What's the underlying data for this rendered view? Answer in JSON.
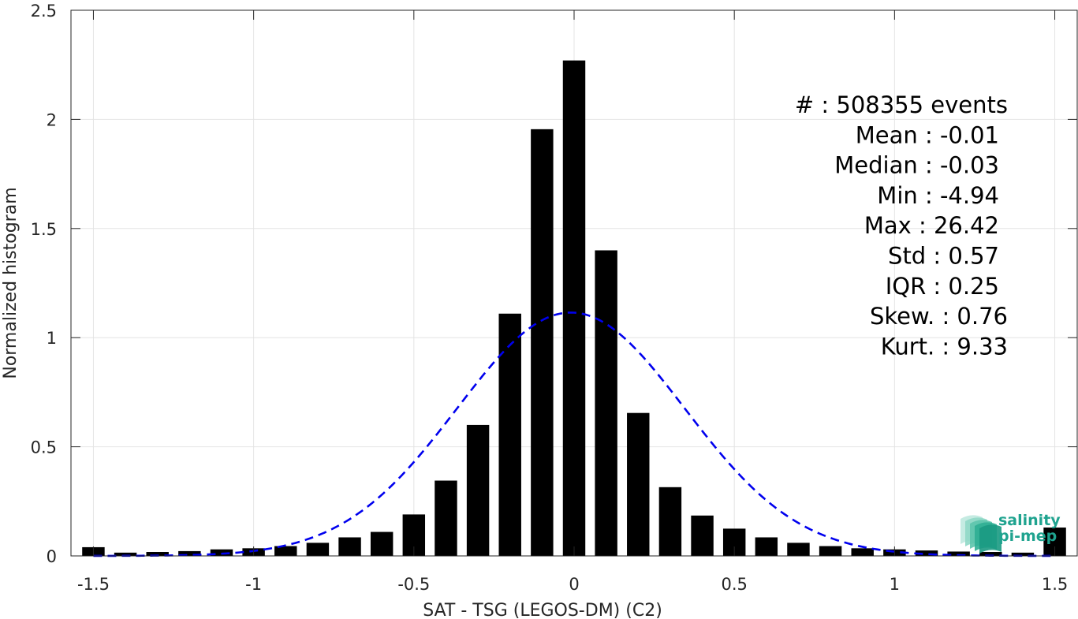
{
  "chart_data": {
    "type": "bar",
    "xlabel": "SAT - TSG (LEGOS-DM) (C2)",
    "ylabel": "Normalized histogram",
    "xlim": [
      -1.57,
      1.57
    ],
    "ylim": [
      0,
      2.5
    ],
    "xticks": [
      -1.5,
      -1,
      -0.5,
      0,
      0.5,
      1,
      1.5
    ],
    "xtick_labels": [
      "-1.5",
      "-1",
      "-0.5",
      "0",
      "0.5",
      "1",
      "1.5"
    ],
    "yticks": [
      0,
      0.5,
      1,
      1.5,
      2,
      2.5
    ],
    "ytick_labels": [
      "0",
      "0.5",
      "1",
      "1.5",
      "2",
      "2.5"
    ],
    "grid": true,
    "bar_color": "#000000",
    "bar_width": 0.07,
    "bins": [
      -1.5,
      -1.4,
      -1.3,
      -1.2,
      -1.1,
      -1.0,
      -0.9,
      -0.8,
      -0.7,
      -0.6,
      -0.5,
      -0.4,
      -0.3,
      -0.2,
      -0.1,
      0.0,
      0.1,
      0.2,
      0.3,
      0.4,
      0.5,
      0.6,
      0.7,
      0.8,
      0.9,
      1.0,
      1.1,
      1.2,
      1.3,
      1.4,
      1.5
    ],
    "values": [
      0.04,
      0.015,
      0.018,
      0.022,
      0.03,
      0.035,
      0.045,
      0.06,
      0.085,
      0.11,
      0.19,
      0.345,
      0.6,
      1.11,
      1.955,
      2.27,
      1.4,
      0.655,
      0.315,
      0.185,
      0.125,
      0.085,
      0.06,
      0.045,
      0.035,
      0.03,
      0.025,
      0.02,
      0.018,
      0.015,
      0.13
    ],
    "fit": {
      "type": "gaussian",
      "mean": -0.01,
      "amplitude": 1.115,
      "sigma": 0.355,
      "color": "#0000ee",
      "style": "dashed"
    },
    "stats": [
      "#  : 508355 events",
      "Mean : -0.01",
      "Median : -0.03",
      "Min : -4.94",
      "Max : 26.42",
      "Std : 0.57",
      "IQR : 0.25",
      "Skew. : 0.76",
      "Kurt. : 9.33"
    ]
  },
  "logo": {
    "line1": "salinity",
    "line2": "pi-mep",
    "color": "#1fa38f"
  }
}
